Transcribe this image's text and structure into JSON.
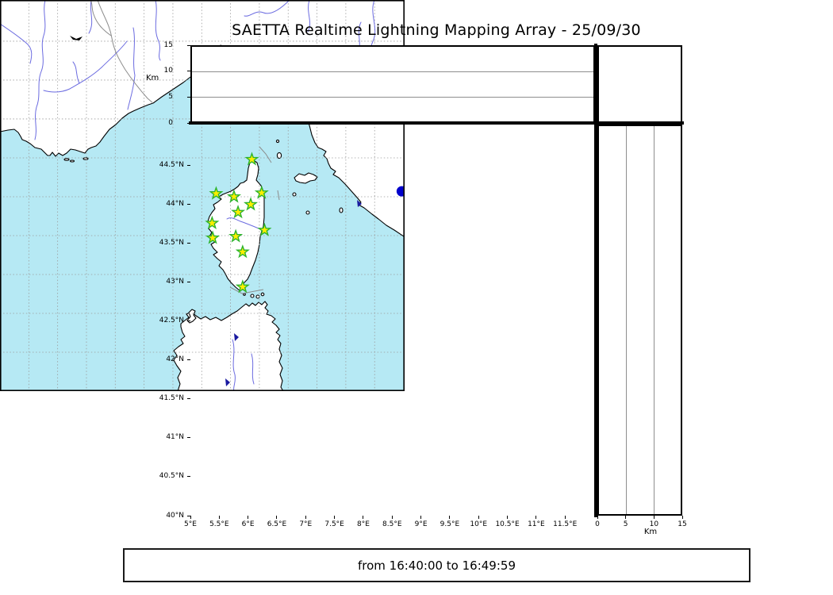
{
  "title": "SAETTA Realtime Lightning Mapping Array - 25/09/30",
  "time_label": "from 16:40:00 to 16:49:59",
  "colors": {
    "sea": "#b6e9f4",
    "land": "#ffffff",
    "coast": "#000000",
    "river": "#6b6be0",
    "border": "#8c8c8c",
    "grid": "#9a9a9a",
    "stationFill": "#ffee00",
    "stationStroke": "#2db42d",
    "detection": "#0000cc",
    "lake": "#1a1aa0"
  },
  "projection": {
    "lon_min": 5,
    "lon_max": 12.02,
    "lat_min": 40,
    "lat_max": 45.03
  },
  "axes": {
    "longitude": {
      "ticks": [
        {
          "value": 5,
          "label": "5°E"
        },
        {
          "value": 5.5,
          "label": "5.5°E"
        },
        {
          "value": 6,
          "label": "6°E"
        },
        {
          "value": 6.5,
          "label": "6.5°E"
        },
        {
          "value": 7,
          "label": "7°E"
        },
        {
          "value": 7.5,
          "label": "7.5°E"
        },
        {
          "value": 8,
          "label": "8°E"
        },
        {
          "value": 8.5,
          "label": "8.5°E"
        },
        {
          "value": 9,
          "label": "9°E"
        },
        {
          "value": 9.5,
          "label": "9.5°E"
        },
        {
          "value": 10,
          "label": "10°E"
        },
        {
          "value": 10.5,
          "label": "10.5°E"
        },
        {
          "value": 11,
          "label": "11°E"
        },
        {
          "value": 11.5,
          "label": "11.5°E"
        }
      ]
    },
    "latitude": {
      "ticks": [
        {
          "value": 44.5,
          "label": "44.5°N"
        },
        {
          "value": 44,
          "label": "44°N"
        },
        {
          "value": 43.5,
          "label": "43.5°N"
        },
        {
          "value": 43,
          "label": "43°N"
        },
        {
          "value": 42.5,
          "label": "42.5°N"
        },
        {
          "value": 42,
          "label": "42°N"
        },
        {
          "value": 41.5,
          "label": "41.5°N"
        },
        {
          "value": 41,
          "label": "41°N"
        },
        {
          "value": 40.5,
          "label": "40.5°N"
        },
        {
          "value": 40,
          "label": "40°N"
        }
      ]
    },
    "altitude": {
      "label": "Km",
      "range": [
        0,
        15
      ],
      "ticks": [
        {
          "value": 0,
          "label": "0"
        },
        {
          "value": 5,
          "label": "5"
        },
        {
          "value": 10,
          "label": "10"
        },
        {
          "value": 15,
          "label": "15"
        }
      ],
      "gridlines": [
        5,
        10
      ]
    }
  },
  "chart_data": {
    "type": "scatter-map",
    "title": "SAETTA Realtime Lightning Mapping Array - 25/09/30",
    "panels": [
      "altitude-vs-longitude",
      "geographic-map",
      "altitude-vs-latitude"
    ],
    "time_window": "from 16:40:00 to 16:49:59",
    "stations": [
      {
        "lon": 9.37,
        "lat": 42.98
      },
      {
        "lon": 8.75,
        "lat": 42.54
      },
      {
        "lon": 9.06,
        "lat": 42.5
      },
      {
        "lon": 9.54,
        "lat": 42.55
      },
      {
        "lon": 9.35,
        "lat": 42.4
      },
      {
        "lon": 9.13,
        "lat": 42.3
      },
      {
        "lon": 8.68,
        "lat": 42.16
      },
      {
        "lon": 9.59,
        "lat": 42.07
      },
      {
        "lon": 9.09,
        "lat": 41.99
      },
      {
        "lon": 8.69,
        "lat": 41.97
      },
      {
        "lon": 9.21,
        "lat": 41.79
      },
      {
        "lon": 9.21,
        "lat": 41.34
      }
    ],
    "detections": [
      {
        "lon": 11.97,
        "lat": 42.57,
        "alt_km": 0
      }
    ]
  }
}
